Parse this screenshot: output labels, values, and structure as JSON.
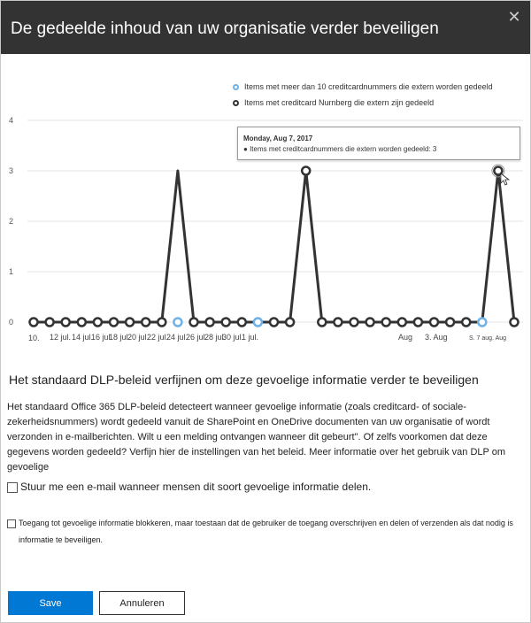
{
  "dialog": {
    "title": "De gedeelde inhoud van uw organisatie verder beveiligen",
    "close_icon": "close-icon"
  },
  "chart_data": {
    "type": "line",
    "legend_placement": "top-right",
    "y_ticks": [
      "0",
      "1",
      "2",
      "3",
      "4"
    ],
    "ylim": [
      0,
      4
    ],
    "x_tick_labels": [
      "10.",
      "12 jul.",
      "14 jul.",
      "16 jul.",
      "18 jul.",
      "20 jul.",
      "22 jul.",
      "24 jul.",
      "26 jul.",
      "28 jul.",
      "30 jul.",
      "1 jul.",
      "Aug",
      "3. Aug",
      "S. 7 aug. Aug"
    ],
    "colors": {
      "series1": "#6fb2e8",
      "series2": "#333333",
      "line": "#333333"
    },
    "series": [
      {
        "name": "Items met meer dan 10 creditcardnummers die extern worden gedeeld",
        "points": [
          [
            9,
            0
          ],
          [
            14,
            0
          ],
          [
            28,
            0
          ]
        ]
      },
      {
        "name": "Items met creditcard Nurnberg die extern zijn gedeeld",
        "values": [
          0,
          0,
          0,
          0,
          0,
          0,
          0,
          0,
          0,
          3,
          0,
          0,
          0,
          0,
          0,
          0,
          0,
          3,
          0,
          0,
          0,
          0,
          0,
          0,
          0,
          0,
          0,
          0,
          0,
          3,
          0
        ]
      }
    ],
    "tooltip": {
      "date": "Monday, Aug 7, 2017",
      "text": "Items met creditcardnummers die extern worden gedeeld: 3"
    }
  },
  "section": {
    "title": "Het standaard DLP-beleid verfijnen om deze gevoelige informatie verder te beveiligen",
    "body": "Het standaard Office 365 DLP-beleid detecteert wanneer gevoelige informatie (zoals creditcard- of sociale-zekerheidsnummers) wordt gedeeld vanuit de SharePoint en OneDrive documenten van uw organisatie of wordt verzonden in e-mailberichten. Wilt u een melding ontvangen wanneer dit gebeurt\". Of zelfs voorkomen dat deze gegevens worden gedeeld? Verfijn hier de instellingen van het beleid. Meer informatie over het gebruik van DLP om gevoelige"
  },
  "options": {
    "email_label": "Stuur me een e-mail wanneer mensen dit soort gevoelige informatie delen.",
    "block_label": "Toegang tot gevoelige informatie blokkeren, maar toestaan dat de gebruiker de toegang overschrijven en delen of verzenden als dat nodig is informatie te beveiligen."
  },
  "buttons": {
    "save": "Save",
    "cancel": "Annuleren"
  }
}
